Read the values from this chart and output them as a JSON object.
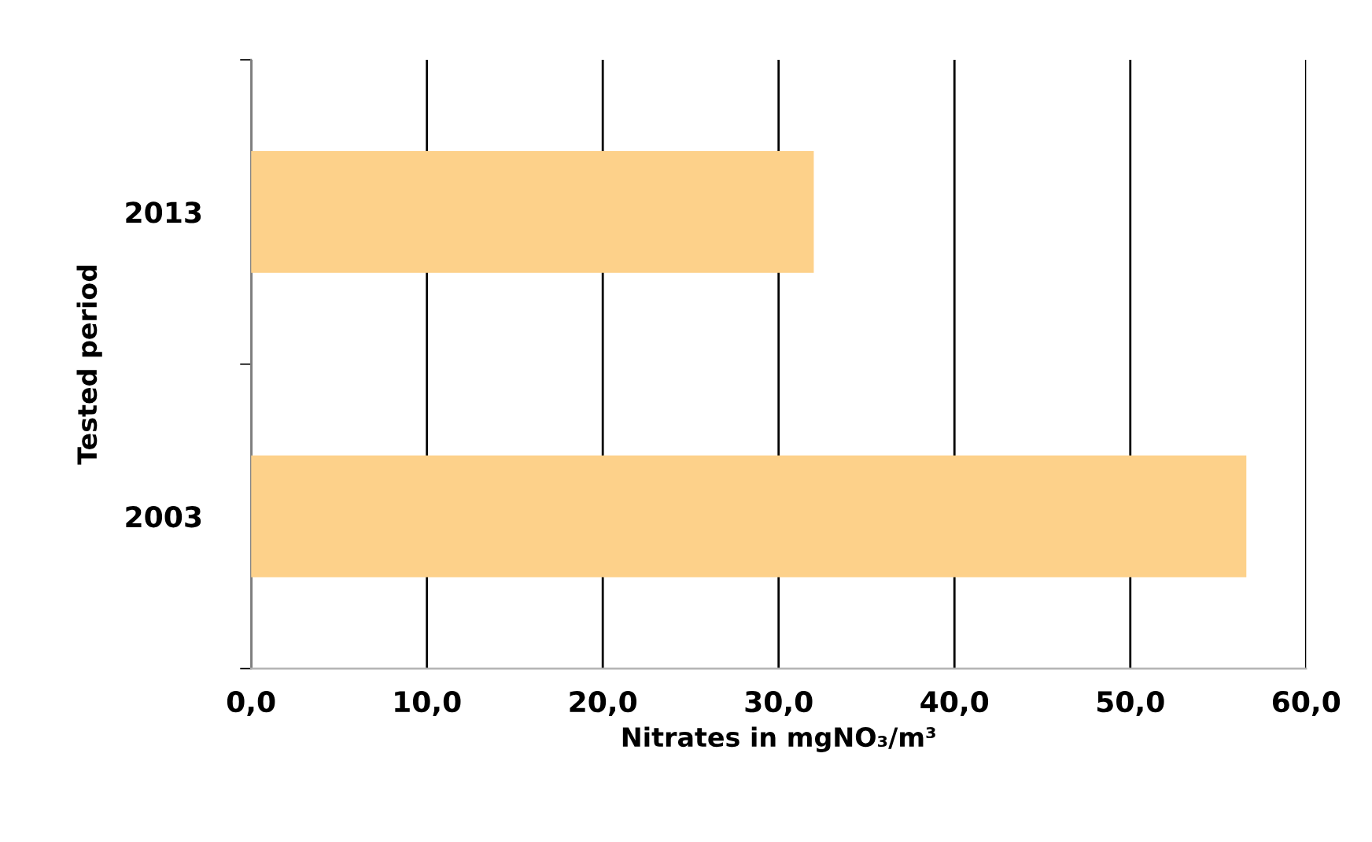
{
  "chart_data": {
    "type": "bar",
    "orientation": "horizontal",
    "categories": [
      "2013",
      "2003"
    ],
    "values": [
      32.0,
      56.6
    ],
    "color": "#fdd18a",
    "xlabel": "Nitrates in mgNO₃/m³",
    "ylabel": "Tested period",
    "xlim": [
      0,
      60
    ],
    "xticks": [
      {
        "value": 0,
        "label": "0,0"
      },
      {
        "value": 10,
        "label": "10,0"
      },
      {
        "value": 20,
        "label": "20,0"
      },
      {
        "value": 30,
        "label": "30,0"
      },
      {
        "value": 40,
        "label": "40,0"
      },
      {
        "value": 50,
        "label": "50,0"
      },
      {
        "value": 60,
        "label": "60,0"
      }
    ],
    "grid": "x"
  }
}
